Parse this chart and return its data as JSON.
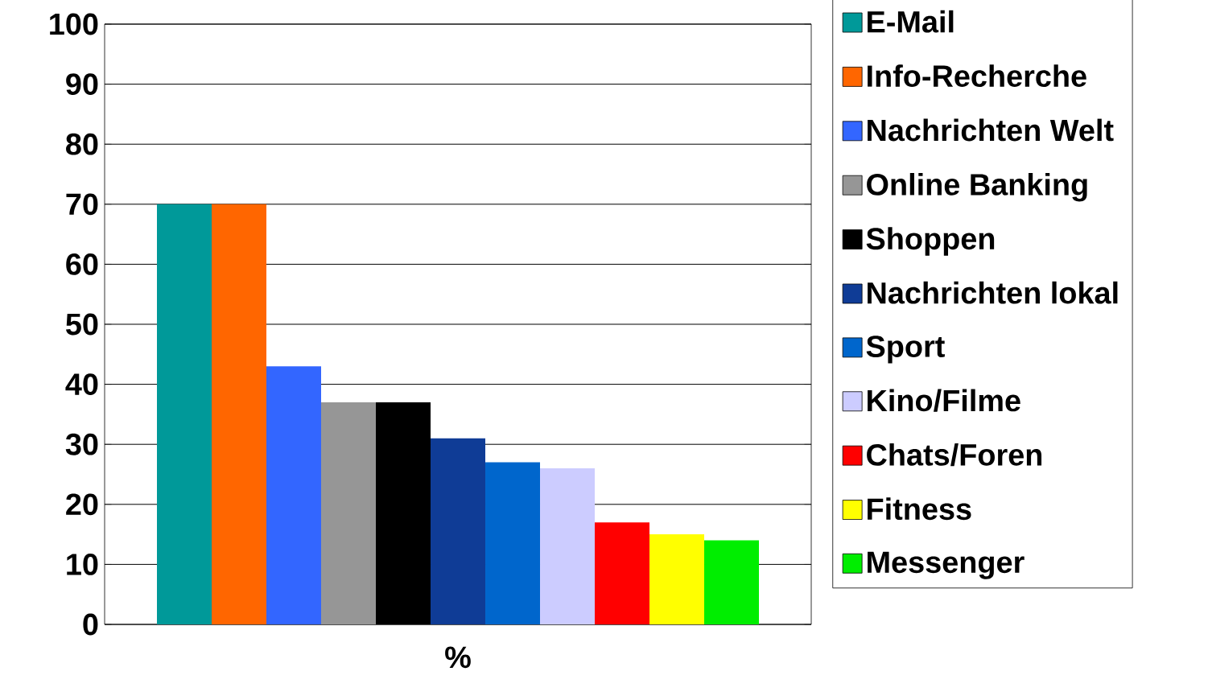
{
  "chart_data": {
    "type": "bar",
    "categories": [
      "%"
    ],
    "ylim": [
      0,
      100
    ],
    "yticks": [
      0,
      10,
      20,
      30,
      40,
      50,
      60,
      70,
      80,
      90,
      100
    ],
    "grid": "y",
    "legend": "right",
    "series": [
      {
        "name": "E-Mail",
        "color": "#009999",
        "values": [
          70
        ]
      },
      {
        "name": "Info-Recherche",
        "color": "#ff6600",
        "values": [
          70
        ]
      },
      {
        "name": "Nachrichten Welt",
        "color": "#3366ff",
        "values": [
          43
        ]
      },
      {
        "name": "Online Banking",
        "color": "#969696",
        "values": [
          37
        ]
      },
      {
        "name": "Shoppen",
        "color": "#000000",
        "values": [
          37
        ]
      },
      {
        "name": "Nachrichten lokal",
        "color": "#0f3c96",
        "values": [
          31
        ]
      },
      {
        "name": "Sport",
        "color": "#0066cc",
        "values": [
          27
        ]
      },
      {
        "name": "Kino/Filme",
        "color": "#ccccff",
        "values": [
          26
        ]
      },
      {
        "name": "Chats/Foren",
        "color": "#ff0000",
        "values": [
          17
        ]
      },
      {
        "name": "Fitness",
        "color": "#ffff00",
        "values": [
          15
        ]
      },
      {
        "name": "Messenger",
        "color": "#00ee00",
        "values": [
          14
        ]
      }
    ]
  }
}
